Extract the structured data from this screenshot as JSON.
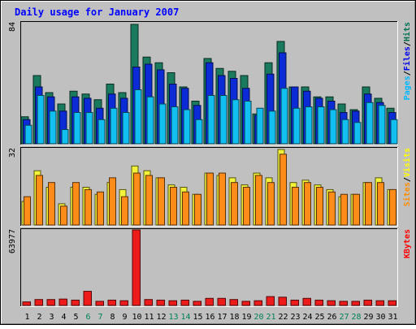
{
  "chart_data": {
    "type": "bar",
    "title": "Daily usage for January 2007",
    "days": [
      "1",
      "2",
      "3",
      "4",
      "5",
      "6",
      "7",
      "8",
      "9",
      "10",
      "11",
      "12",
      "13",
      "14",
      "15",
      "16",
      "17",
      "18",
      "19",
      "20",
      "21",
      "22",
      "23",
      "24",
      "25",
      "26",
      "27",
      "28",
      "29",
      "30",
      "31"
    ],
    "weekend_days": [
      "6",
      "7",
      "13",
      "14",
      "20",
      "21",
      "27",
      "28"
    ],
    "panels": [
      {
        "id": "hits-files-pages",
        "ymax_label": "84",
        "ymax": 84,
        "side_label": [
          "Pages",
          "Files",
          "Hits"
        ],
        "side_colors": [
          "#00b8ff",
          "#0000ee",
          "#007050"
        ],
        "series": [
          {
            "name": "Hits",
            "color": "#1a7a5e",
            "values": [
              19,
              48,
              36,
              28,
              37,
              35,
              31,
              42,
              36,
              84,
              61,
              57,
              50,
              40,
              30,
              60,
              53,
              51,
              48,
              21,
              57,
              72,
              40,
              40,
              33,
              33,
              28,
              24,
              40,
              32,
              25
            ]
          },
          {
            "name": "Files",
            "color": "#0b2bd6",
            "values": [
              17,
              40,
              33,
              23,
              33,
              32,
              25,
              35,
              32,
              54,
              56,
              52,
              42,
              39,
              27,
              57,
              48,
              46,
              39,
              20,
              49,
              64,
              40,
              37,
              32,
              30,
              22,
              23,
              35,
              29,
              22
            ]
          },
          {
            "name": "Pages",
            "color": "#11bff0",
            "values": [
              13,
              34,
              23,
              10,
              22,
              22,
              17,
              25,
              22,
              38,
              33,
              28,
              26,
              24,
              17,
              34,
              34,
              31,
              30,
              25,
              23,
              39,
              25,
              26,
              26,
              24,
              17,
              15,
              29,
              27,
              17
            ]
          }
        ]
      },
      {
        "id": "visits-sites",
        "ymax_label": "32",
        "ymax": 32,
        "side_label": [
          "Sites",
          "Visits"
        ],
        "side_colors": [
          "#ff8c00",
          "#ffff00"
        ],
        "series": [
          {
            "name": "Visits",
            "color": "#f2f23a",
            "values": [
              10,
              23,
              16,
              9,
              16,
              16,
              13,
              18,
              15,
              25,
              23,
              20,
              17,
              16,
              13,
              22,
              21,
              20,
              17,
              22,
              20,
              32,
              18,
              19,
              17,
              15,
              12,
              13,
              18,
              20,
              15
            ]
          },
          {
            "name": "Sites",
            "color": "#ff8c19",
            "values": [
              12,
              21,
              18,
              8,
              18,
              15,
              14,
              20,
              12,
              22,
              21,
              20,
              16,
              14,
              13,
              22,
              22,
              18,
              16,
              21,
              18,
              30,
              16,
              18,
              16,
              14,
              13,
              13,
              18,
              18,
              15
            ]
          }
        ]
      },
      {
        "id": "kbytes",
        "ymax_label": "63977",
        "ymax": 63977,
        "side_label": [
          "KBytes"
        ],
        "side_colors": [
          "#ff0000"
        ],
        "series": [
          {
            "name": "KBytes",
            "color": "#ee1b1b",
            "values": [
              3000,
              5000,
              5000,
              5400,
              4500,
              12000,
              3500,
              4500,
              4000,
              63977,
              5000,
              4500,
              4000,
              4500,
              3500,
              6000,
              6000,
              5000,
              3500,
              4000,
              7500,
              7000,
              4500,
              6000,
              4500,
              4000,
              3500,
              3500,
              4500,
              4000,
              4000
            ]
          }
        ]
      }
    ]
  }
}
